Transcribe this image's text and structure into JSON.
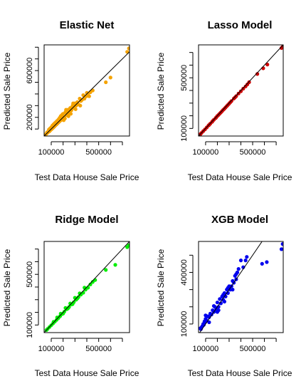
{
  "chart_data": [
    {
      "type": "scatter",
      "title": "Elastic Net",
      "xlabel": "Test Data House Sale Price",
      "ylabel": "Predicted Sale Price",
      "color": "#f5a300",
      "xlim": [
        40000,
        760000
      ],
      "ylim": [
        40000,
        820000
      ],
      "xticks": [
        100000,
        200000,
        300000,
        400000,
        500000,
        600000,
        700000
      ],
      "xtick_labels": [
        "100000",
        "",
        "",
        "",
        "500000",
        "",
        ""
      ],
      "yticks": [
        100000,
        200000,
        300000,
        400000,
        500000,
        600000,
        700000,
        800000
      ],
      "ytick_labels": [
        "",
        "200000",
        "",
        "",
        "",
        "600000",
        "",
        ""
      ],
      "reference_line": "y = x",
      "grid": false,
      "points": [
        [
          755000,
          790000
        ],
        [
          740000,
          760000
        ],
        [
          600000,
          540000
        ],
        [
          560000,
          500000
        ],
        [
          450000,
          430000
        ],
        [
          430000,
          415000
        ],
        [
          420000,
          380000
        ],
        [
          410000,
          400000
        ],
        [
          400000,
          410000
        ],
        [
          395000,
          380000
        ],
        [
          380000,
          360000
        ],
        [
          370000,
          390000
        ],
        [
          360000,
          350000
        ],
        [
          350000,
          340000
        ],
        [
          340000,
          360000
        ],
        [
          330000,
          310000
        ],
        [
          320000,
          330000
        ],
        [
          310000,
          300000
        ],
        [
          300000,
          320000
        ],
        [
          290000,
          280000
        ],
        [
          280000,
          300000
        ],
        [
          270000,
          260000
        ],
        [
          260000,
          280000
        ],
        [
          250000,
          240000
        ],
        [
          240000,
          265000
        ],
        [
          230000,
          220000
        ],
        [
          220000,
          245000
        ],
        [
          210000,
          200000
        ],
        [
          200000,
          230000
        ],
        [
          195000,
          205000
        ],
        [
          190000,
          180000
        ],
        [
          180000,
          210000
        ],
        [
          175000,
          170000
        ],
        [
          170000,
          195000
        ],
        [
          165000,
          160000
        ],
        [
          160000,
          180000
        ],
        [
          155000,
          150000
        ],
        [
          150000,
          170000
        ],
        [
          145000,
          140000
        ],
        [
          140000,
          160000
        ],
        [
          135000,
          130000
        ],
        [
          130000,
          150000
        ],
        [
          125000,
          120000
        ],
        [
          120000,
          140000
        ],
        [
          115000,
          110000
        ],
        [
          110000,
          130000
        ],
        [
          105000,
          100000
        ],
        [
          100000,
          115000
        ],
        [
          95000,
          92000
        ],
        [
          90000,
          105000
        ],
        [
          85000,
          80000
        ],
        [
          80000,
          95000
        ],
        [
          75000,
          75000
        ],
        [
          70000,
          70000
        ],
        [
          65000,
          72000
        ],
        [
          60000,
          60000
        ],
        [
          55000,
          55000
        ],
        [
          345000,
          300000
        ],
        [
          285000,
          320000
        ],
        [
          235000,
          250000
        ],
        [
          185000,
          215000
        ],
        [
          215000,
          190000
        ],
        [
          255000,
          270000
        ],
        [
          305000,
          270000
        ],
        [
          265000,
          230000
        ],
        [
          225000,
          265000
        ],
        [
          245000,
          210000
        ],
        [
          205000,
          175000
        ],
        [
          195000,
          225000
        ]
      ]
    },
    {
      "type": "scatter",
      "title": "Lasso Model",
      "xlabel": "Test Data House Sale Price",
      "ylabel": "Predicted Sale Price",
      "color": "#cc0000",
      "xlim": [
        40000,
        760000
      ],
      "ylim": [
        40000,
        760000
      ],
      "xticks": [
        100000,
        200000,
        300000,
        400000,
        500000,
        600000,
        700000
      ],
      "xtick_labels": [
        "100000",
        "",
        "",
        "",
        "500000",
        "",
        ""
      ],
      "yticks": [
        100000,
        200000,
        300000,
        400000,
        500000,
        600000,
        700000
      ],
      "ytick_labels": [
        "100000",
        "",
        "",
        "",
        "500000",
        "",
        ""
      ],
      "reference_line": "y = x",
      "grid": false,
      "points": [
        [
          755000,
          745000
        ],
        [
          745000,
          735000
        ],
        [
          625000,
          605000
        ],
        [
          590000,
          575000
        ],
        [
          540000,
          530000
        ],
        [
          470000,
          465000
        ],
        [
          455000,
          448000
        ],
        [
          440000,
          432000
        ],
        [
          420000,
          414000
        ],
        [
          400000,
          394000
        ],
        [
          380000,
          376000
        ],
        [
          360000,
          355000
        ],
        [
          340000,
          336000
        ],
        [
          320000,
          316000
        ],
        [
          300000,
          296000
        ],
        [
          280000,
          276000
        ],
        [
          260000,
          256000
        ],
        [
          240000,
          237000
        ],
        [
          220000,
          217000
        ],
        [
          200000,
          198000
        ],
        [
          185000,
          182000
        ],
        [
          170000,
          168000
        ],
        [
          155000,
          152000
        ],
        [
          140000,
          138000
        ],
        [
          125000,
          123000
        ],
        [
          110000,
          108000
        ],
        [
          95000,
          93000
        ],
        [
          80000,
          79000
        ],
        [
          65000,
          64000
        ],
        [
          55000,
          54000
        ],
        [
          290000,
          286000
        ],
        [
          250000,
          247000
        ],
        [
          210000,
          207000
        ],
        [
          230000,
          227000
        ],
        [
          270000,
          266000
        ],
        [
          310000,
          306000
        ],
        [
          350000,
          345000
        ],
        [
          190000,
          187000
        ],
        [
          160000,
          158000
        ],
        [
          130000,
          128000
        ]
      ]
    },
    {
      "type": "scatter",
      "title": "Ridge Model",
      "xlabel": "Test Data House Sale Price",
      "ylabel": "Predicted Sale Price",
      "color": "#00ee00",
      "xlim": [
        40000,
        760000
      ],
      "ylim": [
        40000,
        760000
      ],
      "xticks": [
        100000,
        200000,
        300000,
        400000,
        500000,
        600000,
        700000
      ],
      "xtick_labels": [
        "100000",
        "",
        "",
        "",
        "500000",
        "",
        ""
      ],
      "yticks": [
        100000,
        200000,
        300000,
        400000,
        500000,
        600000,
        700000
      ],
      "ytick_labels": [
        "100000",
        "",
        "",
        "",
        "500000",
        "",
        ""
      ],
      "reference_line": "y = x",
      "grid": false,
      "points": [
        [
          755000,
          730000
        ],
        [
          740000,
          715000
        ],
        [
          640000,
          575000
        ],
        [
          560000,
          535000
        ],
        [
          470000,
          455000
        ],
        [
          450000,
          440000
        ],
        [
          430000,
          420000
        ],
        [
          410000,
          395000
        ],
        [
          390000,
          380000
        ],
        [
          370000,
          355000
        ],
        [
          350000,
          340000
        ],
        [
          330000,
          320000
        ],
        [
          310000,
          300000
        ],
        [
          290000,
          280000
        ],
        [
          270000,
          262000
        ],
        [
          250000,
          242000
        ],
        [
          230000,
          225000
        ],
        [
          210000,
          205000
        ],
        [
          190000,
          186000
        ],
        [
          175000,
          170000
        ],
        [
          160000,
          155000
        ],
        [
          145000,
          140000
        ],
        [
          130000,
          126000
        ],
        [
          115000,
          112000
        ],
        [
          100000,
          98000
        ],
        [
          85000,
          84000
        ],
        [
          70000,
          70000
        ],
        [
          60000,
          60000
        ],
        [
          300000,
          315000
        ],
        [
          260000,
          270000
        ],
        [
          220000,
          235000
        ],
        [
          180000,
          190000
        ],
        [
          240000,
          230000
        ],
        [
          200000,
          190000
        ],
        [
          150000,
          160000
        ],
        [
          120000,
          125000
        ],
        [
          280000,
          265000
        ],
        [
          320000,
          310000
        ],
        [
          340000,
          350000
        ],
        [
          380000,
          395000
        ]
      ]
    },
    {
      "type": "scatter",
      "title": "XGB Model",
      "xlabel": "Test Data House Sale Price",
      "ylabel": "Predicted Sale Price",
      "color": "#0000ee",
      "xlim": [
        40000,
        760000
      ],
      "ylim": [
        50000,
        580000
      ],
      "xticks": [
        100000,
        200000,
        300000,
        400000,
        500000,
        600000,
        700000
      ],
      "xtick_labels": [
        "100000",
        "",
        "",
        "",
        "500000",
        "",
        ""
      ],
      "yticks": [
        100000,
        200000,
        300000,
        400000,
        500000
      ],
      "ytick_labels": [
        "100000",
        "",
        "",
        "400000",
        ""
      ],
      "reference_line": "y = x",
      "grid": false,
      "points": [
        [
          755000,
          565000
        ],
        [
          745000,
          535000
        ],
        [
          620000,
          460000
        ],
        [
          580000,
          450000
        ],
        [
          450000,
          490000
        ],
        [
          440000,
          470000
        ],
        [
          420000,
          430000
        ],
        [
          400000,
          470000
        ],
        [
          380000,
          420000
        ],
        [
          370000,
          400000
        ],
        [
          360000,
          360000
        ],
        [
          350000,
          380000
        ],
        [
          340000,
          340000
        ],
        [
          330000,
          350000
        ],
        [
          320000,
          320000
        ],
        [
          310000,
          300000
        ],
        [
          300000,
          320000
        ],
        [
          290000,
          280000
        ],
        [
          280000,
          300000
        ],
        [
          270000,
          260000
        ],
        [
          260000,
          280000
        ],
        [
          250000,
          240000
        ],
        [
          240000,
          260000
        ],
        [
          230000,
          220000
        ],
        [
          220000,
          245000
        ],
        [
          210000,
          200000
        ],
        [
          200000,
          225000
        ],
        [
          190000,
          185000
        ],
        [
          180000,
          200000
        ],
        [
          170000,
          170000
        ],
        [
          160000,
          180000
        ],
        [
          150000,
          155000
        ],
        [
          140000,
          160000
        ],
        [
          130000,
          140000
        ],
        [
          120000,
          145000
        ],
        [
          110000,
          120000
        ],
        [
          100000,
          130000
        ],
        [
          95000,
          110000
        ],
        [
          90000,
          115000
        ],
        [
          85000,
          95000
        ],
        [
          80000,
          100000
        ],
        [
          75000,
          90000
        ],
        [
          70000,
          85000
        ],
        [
          65000,
          80000
        ],
        [
          60000,
          70000
        ],
        [
          55000,
          75000
        ],
        [
          100000,
          150000
        ],
        [
          130000,
          110000
        ],
        [
          170000,
          205000
        ],
        [
          210000,
          180000
        ],
        [
          250000,
          270000
        ],
        [
          290000,
          310000
        ],
        [
          330000,
          300000
        ],
        [
          360000,
          390000
        ],
        [
          260000,
          230000
        ],
        [
          200000,
          170000
        ]
      ]
    }
  ]
}
